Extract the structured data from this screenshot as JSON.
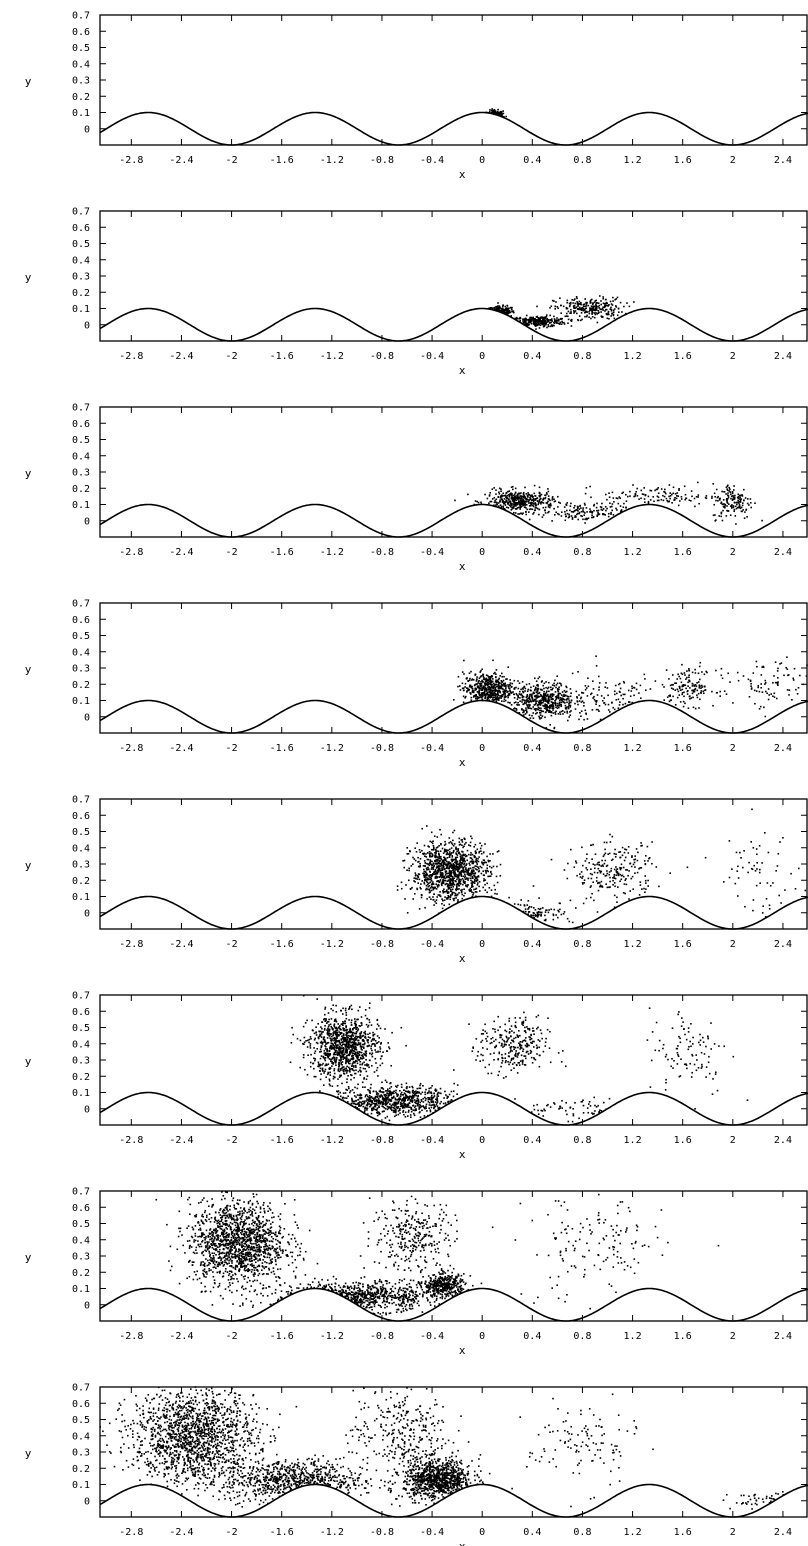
{
  "chart_data": {
    "type": "scatter",
    "panel_count": 8,
    "xlabel": "x",
    "ylabel": "y",
    "xlim": [
      -3.05,
      2.6
    ],
    "ylim": [
      -0.1,
      0.7
    ],
    "x_ticks": [
      "-2.8",
      "-2.4",
      "-2",
      "-1.6",
      "-1.2",
      "-0.8",
      "-0.4",
      "0",
      "0.4",
      "0.8",
      "1.2",
      "1.6",
      "2",
      "2.4"
    ],
    "y_ticks": [
      "0.7",
      "0.6",
      "0.5",
      "0.4",
      "0.3",
      "0.2",
      "0.1",
      "0"
    ],
    "wall": {
      "description_values": {
        "period": 1.333,
        "crest_x": [
          -2.667,
          -1.333,
          0,
          1.333,
          2.667
        ],
        "crest_y": 0.1,
        "trough_y": -0.1
      }
    },
    "panels": [
      {
        "clusters": [
          {
            "cx": 0.1,
            "cy": 0.08,
            "rx": 0.06,
            "ry": 0.03,
            "n": 90
          }
        ]
      },
      {
        "clusters": [
          {
            "cx": 0.15,
            "cy": 0.08,
            "rx": 0.1,
            "ry": 0.03,
            "n": 120
          },
          {
            "cx": 0.45,
            "cy": 0.02,
            "rx": 0.2,
            "ry": 0.03,
            "n": 260
          },
          {
            "cx": 0.85,
            "cy": 0.1,
            "rx": 0.25,
            "ry": 0.06,
            "n": 260
          }
        ]
      },
      {
        "clusters": [
          {
            "cx": 0.3,
            "cy": 0.12,
            "rx": 0.25,
            "ry": 0.06,
            "n": 420
          },
          {
            "cx": 0.8,
            "cy": 0.05,
            "rx": 0.3,
            "ry": 0.05,
            "n": 140
          },
          {
            "cx": 1.4,
            "cy": 0.15,
            "rx": 0.4,
            "ry": 0.06,
            "n": 120
          },
          {
            "cx": 2.0,
            "cy": 0.12,
            "rx": 0.15,
            "ry": 0.1,
            "n": 150
          }
        ]
      },
      {
        "clusters": [
          {
            "cx": 0.05,
            "cy": 0.17,
            "rx": 0.18,
            "ry": 0.09,
            "n": 500
          },
          {
            "cx": 0.5,
            "cy": 0.1,
            "rx": 0.22,
            "ry": 0.1,
            "n": 480
          },
          {
            "cx": 1.0,
            "cy": 0.1,
            "rx": 0.4,
            "ry": 0.15,
            "n": 120
          },
          {
            "cx": 1.65,
            "cy": 0.18,
            "rx": 0.2,
            "ry": 0.1,
            "n": 150
          },
          {
            "cx": 2.3,
            "cy": 0.2,
            "rx": 0.3,
            "ry": 0.15,
            "n": 80
          }
        ]
      },
      {
        "clusters": [
          {
            "cx": -0.25,
            "cy": 0.25,
            "rx": 0.28,
            "ry": 0.17,
            "n": 1100
          },
          {
            "cx": 0.4,
            "cy": 0.0,
            "rx": 0.3,
            "ry": 0.06,
            "n": 80
          },
          {
            "cx": 1.05,
            "cy": 0.25,
            "rx": 0.3,
            "ry": 0.16,
            "n": 230
          },
          {
            "cx": 2.2,
            "cy": 0.25,
            "rx": 0.3,
            "ry": 0.25,
            "n": 60
          }
        ]
      },
      {
        "clusters": [
          {
            "cx": -1.1,
            "cy": 0.38,
            "rx": 0.25,
            "ry": 0.18,
            "n": 1000
          },
          {
            "cx": -0.7,
            "cy": 0.05,
            "rx": 0.45,
            "ry": 0.08,
            "n": 700
          },
          {
            "cx": 0.25,
            "cy": 0.38,
            "rx": 0.25,
            "ry": 0.16,
            "n": 280
          },
          {
            "cx": 0.8,
            "cy": 0.0,
            "rx": 0.4,
            "ry": 0.06,
            "n": 60
          },
          {
            "cx": 1.65,
            "cy": 0.35,
            "rx": 0.3,
            "ry": 0.25,
            "n": 100
          }
        ]
      },
      {
        "clusters": [
          {
            "cx": -1.95,
            "cy": 0.38,
            "rx": 0.35,
            "ry": 0.23,
            "n": 1400
          },
          {
            "cx": -1.0,
            "cy": 0.05,
            "rx": 0.6,
            "ry": 0.08,
            "n": 650
          },
          {
            "cx": -0.55,
            "cy": 0.42,
            "rx": 0.3,
            "ry": 0.2,
            "n": 300
          },
          {
            "cx": -0.3,
            "cy": 0.12,
            "rx": 0.15,
            "ry": 0.06,
            "n": 350
          },
          {
            "cx": 0.9,
            "cy": 0.35,
            "rx": 0.5,
            "ry": 0.3,
            "n": 140
          }
        ]
      },
      {
        "clusters": [
          {
            "cx": -2.3,
            "cy": 0.4,
            "rx": 0.45,
            "ry": 0.27,
            "n": 1500
          },
          {
            "cx": -1.5,
            "cy": 0.12,
            "rx": 0.5,
            "ry": 0.12,
            "n": 700
          },
          {
            "cx": -0.65,
            "cy": 0.42,
            "rx": 0.35,
            "ry": 0.25,
            "n": 300
          },
          {
            "cx": -0.35,
            "cy": 0.13,
            "rx": 0.25,
            "ry": 0.11,
            "n": 900
          },
          {
            "cx": 0.8,
            "cy": 0.35,
            "rx": 0.4,
            "ry": 0.25,
            "n": 110
          },
          {
            "cx": 2.3,
            "cy": 0.0,
            "rx": 0.3,
            "ry": 0.05,
            "n": 40
          }
        ]
      }
    ]
  }
}
